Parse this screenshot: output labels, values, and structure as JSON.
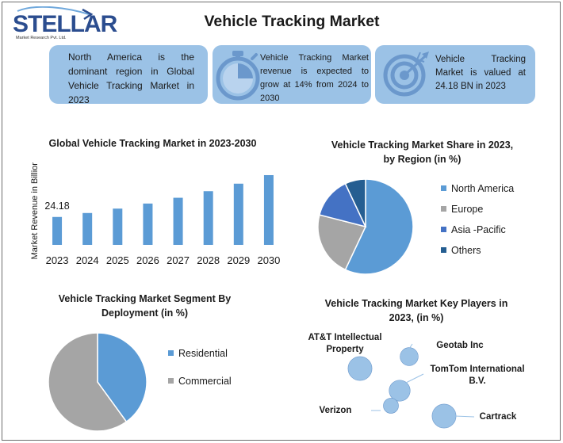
{
  "logo": {
    "brand": "STELLAR",
    "tagline": "Market Research Pvt. Ltd."
  },
  "title": "Vehicle Tracking Market",
  "cards": [
    {
      "text": "North America is the dominant region in Global Vehicle Tracking Market in 2023",
      "icon": "globe-icon"
    },
    {
      "text": "Vehicle Tracking Market revenue is expected to grow at 14% from 2024 to 2030",
      "icon": "stopwatch-icon"
    },
    {
      "text": "Vehicle Tracking Market is valued at 24.18 BN in 2023",
      "icon": "target-icon"
    }
  ],
  "colors": {
    "card": "#9bc2e6",
    "bar": "#5b9bd5",
    "north_america": "#5b9bd5",
    "europe": "#a5a5a5",
    "asia_pacific": "#4472c4",
    "others": "#255e91",
    "bubble": "#9bc2e6"
  },
  "chart_data": [
    {
      "type": "bar",
      "title": "Global Vehicle Tracking Market in 2023-2030",
      "ylabel": "Market Revenue in Billion",
      "xlabel": "",
      "categories": [
        "2023",
        "2024",
        "2025",
        "2026",
        "2027",
        "2028",
        "2029",
        "2030"
      ],
      "values": [
        24.18,
        27.6,
        31.4,
        35.8,
        40.8,
        46.5,
        53.0,
        60.4
      ],
      "data_labels": [
        "24.18",
        "",
        "",
        "",
        "",
        "",
        "",
        ""
      ],
      "ylim": [
        0,
        70
      ],
      "grid": false
    },
    {
      "type": "pie",
      "title": "Vehicle Tracking Market Share in 2023, by Region (in %)",
      "labels": [
        "North America",
        "Europe",
        "Asia -Pacific",
        "Others"
      ],
      "values": [
        57,
        22,
        14,
        7
      ],
      "legend": "right"
    },
    {
      "type": "pie",
      "title": "Vehicle Tracking Market Segment By Deployment (in %)",
      "labels": [
        "Residential",
        "Commercial"
      ],
      "values": [
        40,
        60
      ],
      "legend": "right"
    },
    {
      "type": "scatter",
      "title": "Vehicle Tracking Market Key Players in 2023, (in %)",
      "points": [
        {
          "label": "AT&T Intellectual Property",
          "size": 3
        },
        {
          "label": "Geotab Inc",
          "size": 2
        },
        {
          "label": "TomTom International B.V.",
          "size": 2.5
        },
        {
          "label": "Verizon",
          "size": 1.5
        },
        {
          "label": "Cartrack",
          "size": 3
        }
      ]
    }
  ]
}
